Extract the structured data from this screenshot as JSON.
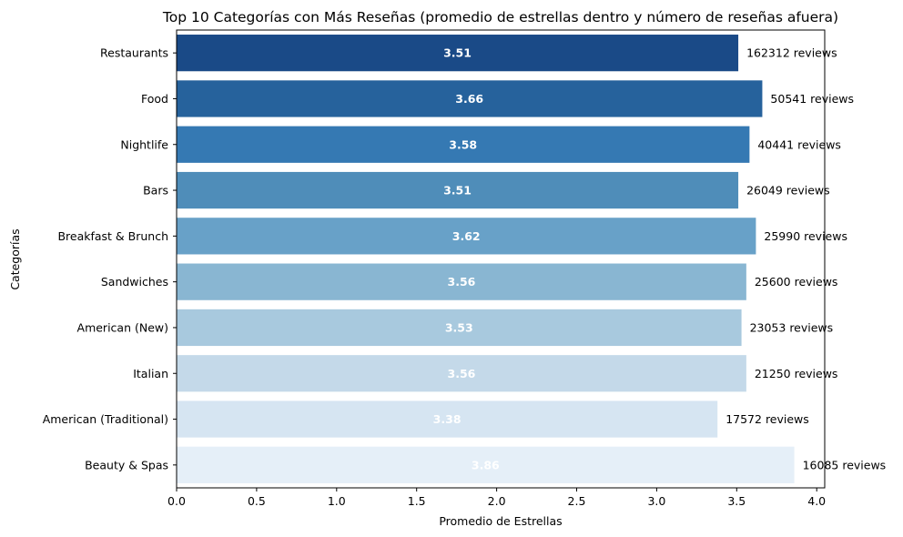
{
  "chart_data": {
    "type": "bar",
    "orientation": "horizontal",
    "title": "Top 10 Categorías con Más Reseñas (promedio de estrellas dentro y número de reseñas afuera)",
    "xlabel": "Promedio de Estrellas",
    "ylabel": "Categorías",
    "xlim": [
      0,
      4.05
    ],
    "xticks": [
      0.0,
      0.5,
      1.0,
      1.5,
      2.0,
      2.5,
      3.0,
      3.5,
      4.0
    ],
    "xtick_labels": [
      "0.0",
      "0.5",
      "1.0",
      "1.5",
      "2.0",
      "2.5",
      "3.0",
      "3.5",
      "4.0"
    ],
    "grid": false,
    "categories": [
      "Restaurants",
      "Food",
      "Nightlife",
      "Bars",
      "Breakfast & Brunch",
      "Sandwiches",
      "American (New)",
      "Italian",
      "American (Traditional)",
      "Beauty & Spas"
    ],
    "values": [
      3.51,
      3.66,
      3.58,
      3.51,
      3.62,
      3.56,
      3.53,
      3.56,
      3.38,
      3.86
    ],
    "value_labels": [
      "3.51",
      "3.66",
      "3.58",
      "3.51",
      "3.62",
      "3.56",
      "3.53",
      "3.56",
      "3.38",
      "3.86"
    ],
    "review_counts": [
      162312,
      50541,
      40441,
      26049,
      25990,
      25600,
      23053,
      21250,
      17572,
      16085
    ],
    "count_labels": [
      "162312 reviews",
      "50541 reviews",
      "40441 reviews",
      "26049 reviews",
      "25990 reviews",
      "25600 reviews",
      "23053 reviews",
      "21250 reviews",
      "17572 reviews",
      "16085 reviews"
    ],
    "colors": [
      "#1a4a87",
      "#26629c",
      "#3579b3",
      "#4f8db9",
      "#68a1c8",
      "#89b6d2",
      "#a8c9de",
      "#c4d9e9",
      "#d6e5f2",
      "#e5eff8"
    ]
  }
}
